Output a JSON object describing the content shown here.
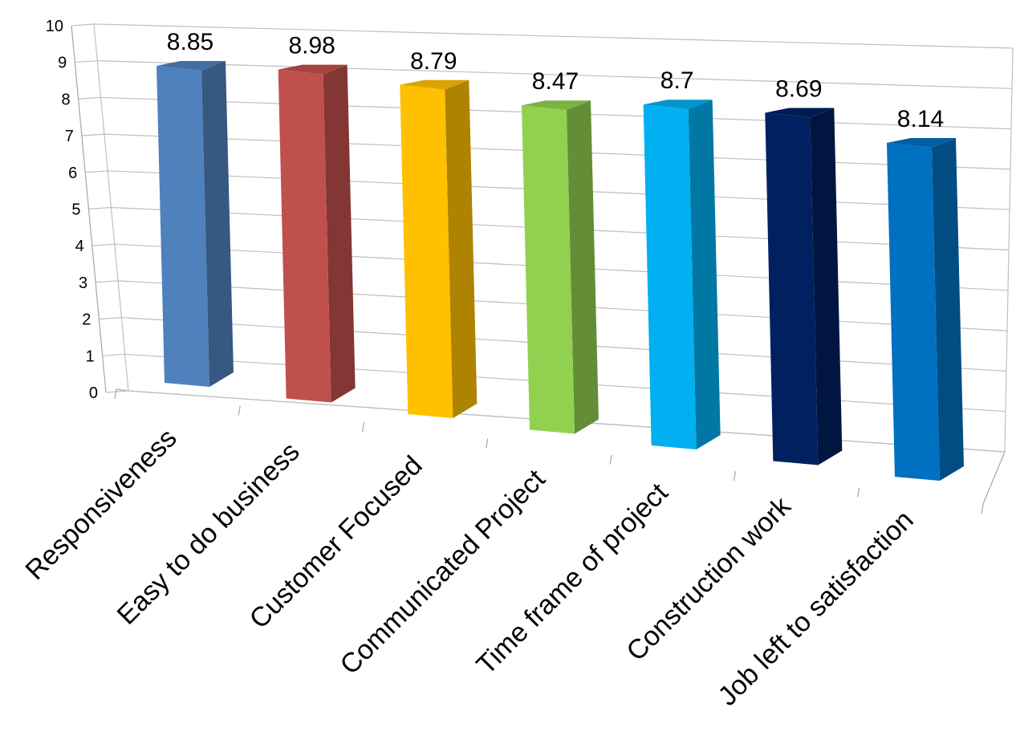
{
  "chart_data": {
    "type": "bar",
    "style": "3d-column",
    "title": "",
    "xlabel": "",
    "ylabel": "",
    "categories": [
      "Responsiveness",
      "Easy to do business",
      "Customer Focused",
      "Communicated Project",
      "Time frame of project",
      "Construction work",
      "Job left to satisfaction"
    ],
    "values": [
      8.85,
      8.98,
      8.79,
      8.47,
      8.7,
      8.69,
      8.14
    ],
    "value_labels": [
      "8.85",
      "8.98",
      "8.79",
      "8.47",
      "8.7",
      "8.69",
      "8.14"
    ],
    "ylim": [
      0,
      10
    ],
    "yticks": [
      "0",
      "1",
      "2",
      "3",
      "4",
      "5",
      "6",
      "7",
      "8",
      "9",
      "10"
    ],
    "grid": true,
    "legend": false,
    "colors": [
      "#4f81bd",
      "#c0504d",
      "#ffc000",
      "#92d050",
      "#00b0f0",
      "#002060",
      "#0070c0"
    ]
  }
}
